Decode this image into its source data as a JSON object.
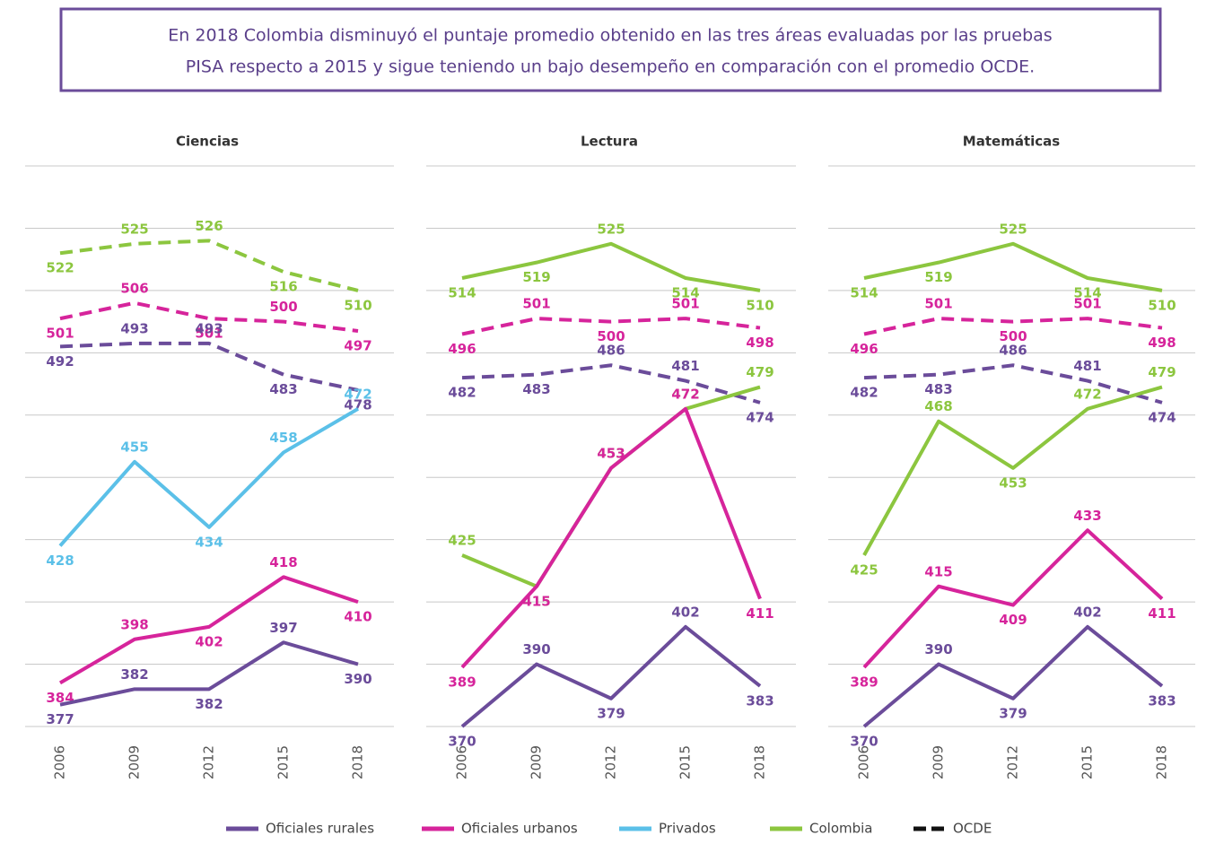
{
  "header": {
    "lines": [
      "En 2018 Colombia disminuyó el puntaje promedio obtenido en las tres áreas evaluadas por las pruebas",
      "PISA respecto a 2015 y sigue teniendo un bajo desempeño en comparación con el promedio OCDE."
    ]
  },
  "legend": [
    {
      "name": "Oficiales rurales",
      "color": "#6b4c9a",
      "dashed": false
    },
    {
      "name": "Oficiales urbanos",
      "color": "#d6249b",
      "dashed": false
    },
    {
      "name": "Privados",
      "color": "#5bc0e8",
      "dashed": false
    },
    {
      "name": "Colombia",
      "color": "#8cc63f",
      "dashed": false
    },
    {
      "name": "OCDE",
      "color": "#111111",
      "dashed": true
    }
  ],
  "chart_data": [
    {
      "type": "line",
      "title": "Ciencias",
      "categories": [
        "2006",
        "2009",
        "2012",
        "2015",
        "2018"
      ],
      "ylim": [
        370,
        550
      ],
      "yticks": [
        370,
        390,
        410,
        430,
        450,
        470,
        490,
        510,
        530,
        550
      ],
      "grid": true,
      "series": [
        {
          "color": "#8cc63f",
          "dashed": true,
          "values": [
            522,
            525,
            526,
            516,
            510
          ]
        },
        {
          "color": "#d6249b",
          "dashed": true,
          "values": [
            501,
            506,
            501,
            500,
            497
          ]
        },
        {
          "color": "#6b4c9a",
          "dashed": true,
          "values": [
            492,
            493,
            493,
            483,
            478
          ]
        },
        {
          "color": "#5bc0e8",
          "dashed": false,
          "values": [
            428,
            455,
            434,
            458,
            472
          ]
        },
        {
          "color": "#d6249b",
          "dashed": false,
          "values": [
            384,
            398,
            402,
            418,
            410
          ]
        },
        {
          "color": "#6b4c9a",
          "dashed": false,
          "values": [
            377,
            382,
            382,
            397,
            390
          ]
        }
      ]
    },
    {
      "type": "line",
      "title": "Lectura",
      "categories": [
        "2006",
        "2009",
        "2012",
        "2015",
        "2018"
      ],
      "ylim": [
        370,
        550
      ],
      "yticks": [
        370,
        390,
        410,
        430,
        450,
        470,
        490,
        510,
        530,
        550
      ],
      "grid": true,
      "series": [
        {
          "color": "#8cc63f",
          "dashed": false,
          "values": [
            514,
            519,
            525,
            514,
            510
          ]
        },
        {
          "color": "#d6249b",
          "dashed": true,
          "values": [
            496,
            501,
            500,
            501,
            498
          ]
        },
        {
          "color": "#6b4c9a",
          "dashed": true,
          "values": [
            482,
            483,
            486,
            481,
            474
          ]
        },
        {
          "color": "#8cc63f",
          "dashed": false,
          "values": [
            425,
            415,
            453,
            472,
            479
          ]
        },
        {
          "color": "#d6249b",
          "dashed": false,
          "values": [
            389,
            415,
            453,
            472,
            411
          ]
        },
        {
          "color": "#6b4c9a",
          "dashed": false,
          "values": [
            370,
            390,
            379,
            402,
            383
          ]
        }
      ]
    },
    {
      "type": "line",
      "title": "Matemáticas",
      "categories": [
        "2006",
        "2009",
        "2012",
        "2015",
        "2018"
      ],
      "ylim": [
        370,
        550
      ],
      "yticks": [
        370,
        390,
        410,
        430,
        450,
        470,
        490,
        510,
        530,
        550
      ],
      "grid": true,
      "series": [
        {
          "color": "#8cc63f",
          "dashed": false,
          "values": [
            514,
            519,
            525,
            514,
            510
          ]
        },
        {
          "color": "#d6249b",
          "dashed": true,
          "values": [
            496,
            501,
            500,
            501,
            498
          ]
        },
        {
          "color": "#6b4c9a",
          "dashed": true,
          "values": [
            482,
            483,
            486,
            481,
            474
          ]
        },
        {
          "color": "#8cc63f",
          "dashed": false,
          "values": [
            425,
            468,
            453,
            472,
            479
          ]
        },
        {
          "color": "#d6249b",
          "dashed": false,
          "values": [
            389,
            415,
            409,
            433,
            411
          ]
        },
        {
          "color": "#6b4c9a",
          "dashed": false,
          "values": [
            370,
            390,
            379,
            402,
            383
          ]
        }
      ]
    }
  ]
}
